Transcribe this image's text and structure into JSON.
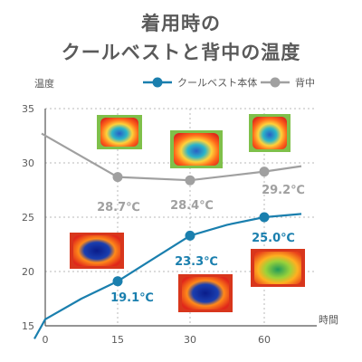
{
  "title_lines": [
    "着用時の",
    "クールベストと背中の温度"
  ],
  "chart_data": {
    "type": "line",
    "ylabel": "温度",
    "xlabel": "時間",
    "ylim": [
      15,
      35
    ],
    "yticks": [
      "15",
      "20",
      "25",
      "30",
      "35"
    ],
    "xticks": [
      "0",
      "15",
      "30",
      "60"
    ],
    "grid": "dotted horizontal and vertical",
    "legend_position": "top-right",
    "series": [
      {
        "name": "クールベスト本体",
        "color": "#1a7fae",
        "marker_ticks": [
          "15",
          "30",
          "60"
        ],
        "values": [
          19.1,
          23.3,
          25.0
        ],
        "labels": [
          "19.1℃",
          "23.3℃",
          "25.0℃"
        ],
        "curve": [
          [
            -0.15,
            13.8
          ],
          [
            0,
            15.6
          ],
          [
            0.5,
            17.5
          ],
          [
            1,
            19.1
          ],
          [
            1.5,
            21.2
          ],
          [
            2,
            23.3
          ],
          [
            2.5,
            24.3
          ],
          [
            3,
            25.0
          ],
          [
            3.5,
            25.3
          ]
        ]
      },
      {
        "name": "背中",
        "color": "#a0a0a0",
        "marker_ticks": [
          "15",
          "30",
          "60"
        ],
        "values": [
          28.7,
          28.4,
          29.2
        ],
        "labels": [
          "28.7℃",
          "28.4℃",
          "29.2℃"
        ],
        "curve": [
          [
            -0.05,
            32.7
          ],
          [
            1,
            28.7
          ],
          [
            2,
            28.4
          ],
          [
            3,
            29.2
          ],
          [
            3.5,
            29.7
          ]
        ]
      }
    ]
  },
  "colors": {
    "vest": "#1a7fae",
    "back": "#a0a0a0",
    "text": "#5a5a5a",
    "grid": "#b8b8b8"
  },
  "thermal_images": [
    {
      "name": "thermal-back-15",
      "subject": "back",
      "tick": "15",
      "tone": "warm"
    },
    {
      "name": "thermal-back-30",
      "subject": "back",
      "tick": "30",
      "tone": "warm"
    },
    {
      "name": "thermal-back-60",
      "subject": "back",
      "tick": "60",
      "tone": "warm"
    },
    {
      "name": "thermal-vest-15",
      "subject": "vest",
      "tick": "15",
      "tone": "cold"
    },
    {
      "name": "thermal-vest-30",
      "subject": "vest",
      "tick": "30",
      "tone": "cold"
    },
    {
      "name": "thermal-vest-60",
      "subject": "vest",
      "tick": "60",
      "tone": "mid"
    }
  ]
}
